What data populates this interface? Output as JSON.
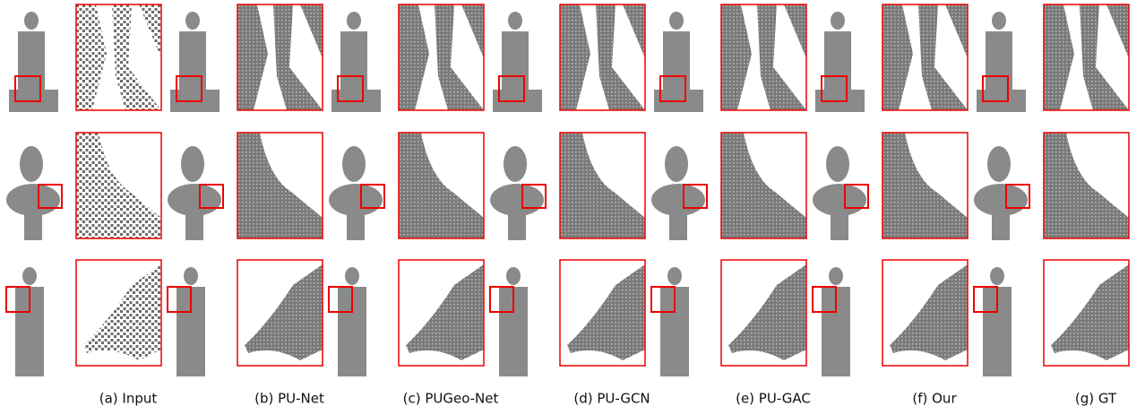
{
  "figure": {
    "captions": [
      "(a) Input",
      "(b) PU-Net",
      "(c) PUGeo-Net",
      "(d) PU-GCN",
      "(e) PU-GAC",
      "(f) Our",
      "(g) GT"
    ]
  }
}
